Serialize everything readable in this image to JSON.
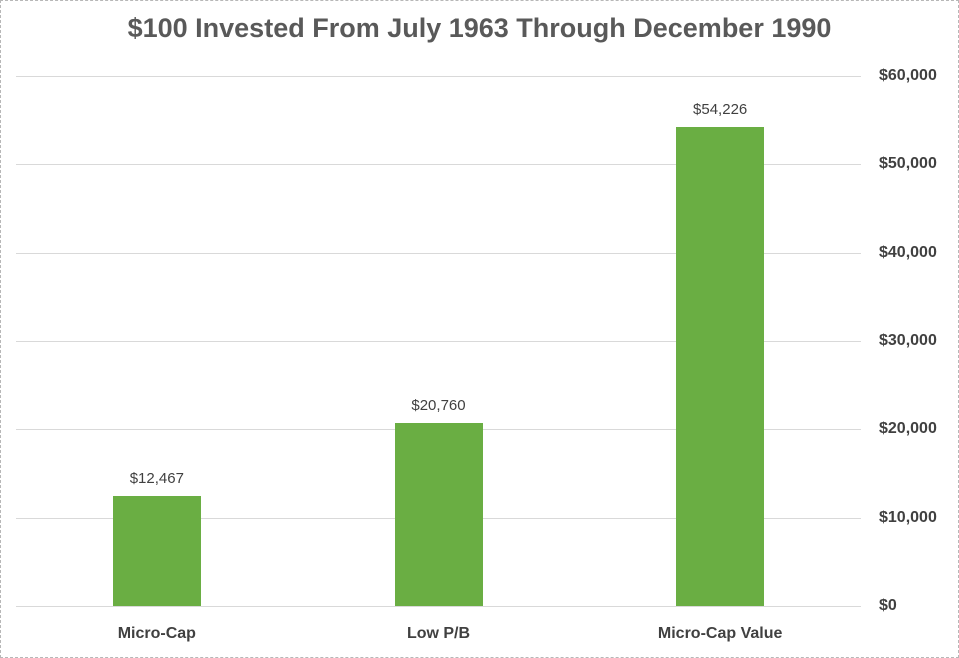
{
  "chart_data": {
    "type": "bar",
    "title": "$100 Invested From July 1963 Through December 1990",
    "categories": [
      "Micro-Cap",
      "Low P/B",
      "Micro-Cap Value"
    ],
    "values": [
      12467,
      20760,
      54226
    ],
    "data_labels": [
      "$12,467",
      "$20,760",
      "$54,226"
    ],
    "xlabel": "",
    "ylabel": "",
    "ylim": [
      0,
      60000
    ],
    "y_ticks": [
      {
        "value": 0,
        "label": "$0"
      },
      {
        "value": 10000,
        "label": "$10,000"
      },
      {
        "value": 20000,
        "label": "$20,000"
      },
      {
        "value": 30000,
        "label": "$30,000"
      },
      {
        "value": 40000,
        "label": "$40,000"
      },
      {
        "value": 50000,
        "label": "$50,000"
      },
      {
        "value": 60000,
        "label": "$60,000"
      }
    ],
    "grid": true,
    "legend": false,
    "y_axis_side": "right",
    "bar_color": "#6aae43",
    "gridline_color": "#d9d9d9",
    "title_color": "#595959",
    "label_color": "#404040"
  }
}
